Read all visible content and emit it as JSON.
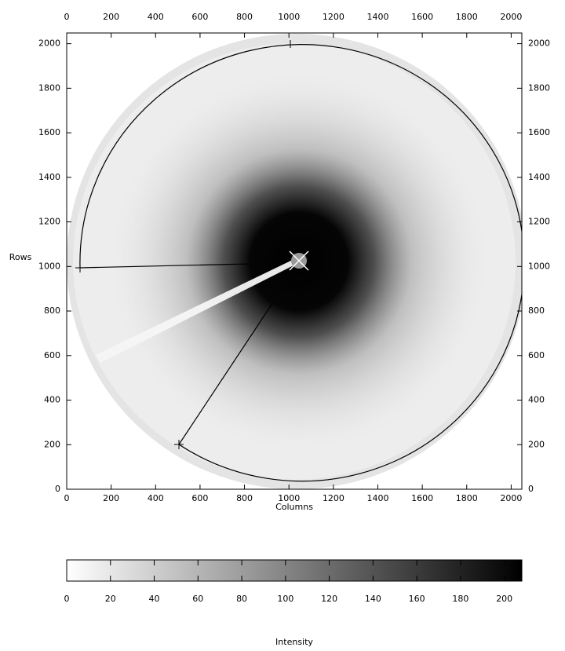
{
  "chart_data": {
    "type": "image",
    "xlabel": "Columns",
    "ylabel": "Rows",
    "xlim": [
      0,
      2048
    ],
    "ylim": [
      0,
      2048
    ],
    "xticks": [
      0,
      200,
      400,
      600,
      800,
      1000,
      1200,
      1400,
      1600,
      1800,
      2000
    ],
    "yticks": [
      0,
      200,
      400,
      600,
      800,
      1000,
      1200,
      1400,
      1600,
      1800,
      2000
    ],
    "colorbar": {
      "label": "Intensity",
      "lim": [
        0,
        208
      ],
      "ticks": [
        0,
        20,
        40,
        60,
        80,
        100,
        120,
        140,
        160,
        180,
        200
      ]
    }
  }
}
